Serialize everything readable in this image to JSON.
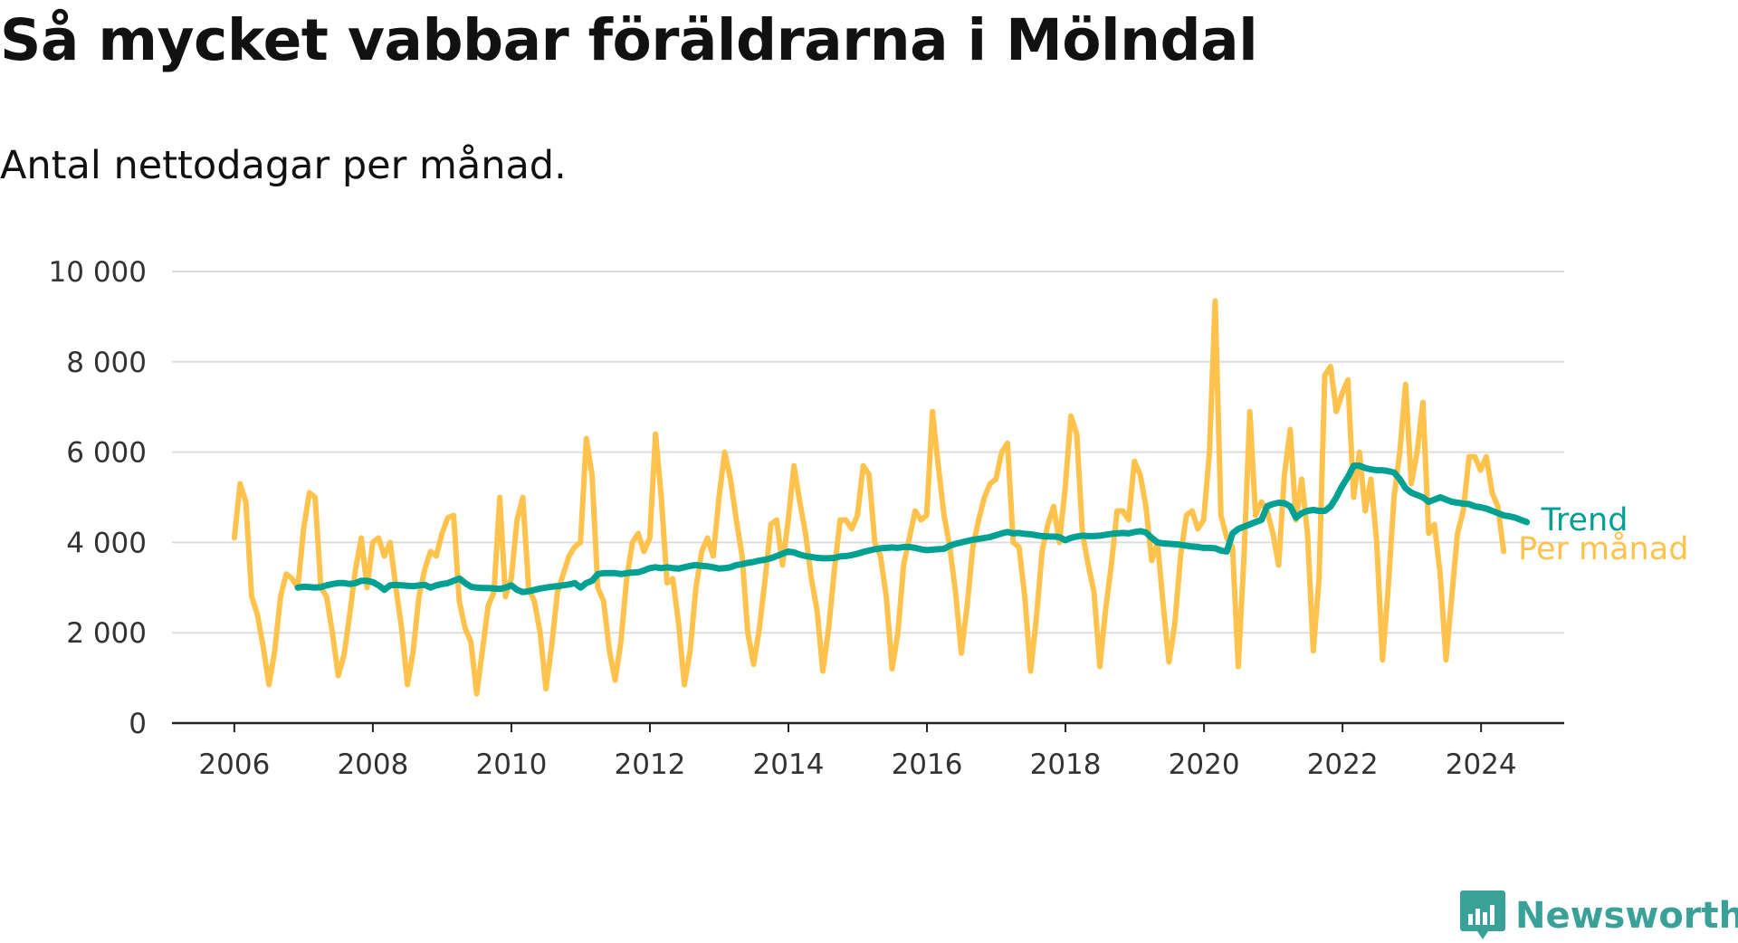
{
  "chart_data": {
    "type": "line",
    "title": "Så mycket vabbar föräldrarna i Mölndal",
    "subtitle": "Antal nettodagar per månad.",
    "xlabel": "",
    "ylabel": "",
    "x_ticks": [
      "2006",
      "2008",
      "2010",
      "2012",
      "2014",
      "2016",
      "2018",
      "2020",
      "2022",
      "2024"
    ],
    "y_ticks": [
      "0",
      "2 000",
      "4 000",
      "6 000",
      "8 000",
      "10 000"
    ],
    "ylim": [
      0,
      10000
    ],
    "xlim": [
      2005.1,
      2025.2
    ],
    "grid": "horizontal",
    "legend": "inline-right",
    "series": [
      {
        "name": "Per månad",
        "color": "#ffc24d",
        "x_start": 2006.0,
        "step": 0.0833,
        "values": [
          4100,
          5300,
          4900,
          2800,
          2400,
          1700,
          850,
          1600,
          2800,
          3300,
          3200,
          3000,
          4300,
          5100,
          5000,
          3000,
          2800,
          2000,
          1050,
          1500,
          2400,
          3400,
          4100,
          3000,
          4000,
          4100,
          3700,
          4000,
          3000,
          2100,
          850,
          1600,
          2800,
          3400,
          3800,
          3700,
          4200,
          4550,
          4600,
          2700,
          2100,
          1800,
          650,
          1600,
          2600,
          2900,
          5000,
          2800,
          3200,
          4500,
          5000,
          3000,
          2700,
          2000,
          760,
          1700,
          2900,
          3300,
          3700,
          3900,
          4000,
          6300,
          5500,
          3000,
          2700,
          1600,
          950,
          1800,
          3200,
          4000,
          4200,
          3800,
          4100,
          6400,
          5000,
          3100,
          3200,
          2200,
          850,
          1600,
          3000,
          3800,
          4100,
          3700,
          5000,
          6000,
          5400,
          4500,
          3700,
          2000,
          1300,
          2100,
          3200,
          4400,
          4500,
          3500,
          4500,
          5700,
          4900,
          4200,
          3200,
          2500,
          1150,
          2100,
          3400,
          4500,
          4500,
          4300,
          4600,
          5700,
          5500,
          4000,
          3700,
          2800,
          1200,
          2000,
          3500,
          4100,
          4700,
          4500,
          4600,
          6900,
          5700,
          4600,
          3900,
          2900,
          1550,
          2600,
          3900,
          4500,
          5000,
          5300,
          5400,
          6000,
          6200,
          4000,
          3900,
          2800,
          1150,
          2300,
          3800,
          4400,
          4800,
          4000,
          5200,
          6800,
          6400,
          4200,
          3500,
          2900,
          1250,
          2500,
          3500,
          4700,
          4700,
          4500,
          5800,
          5500,
          4800,
          3600,
          4000,
          2600,
          1350,
          2200,
          3700,
          4600,
          4700,
          4300,
          4500,
          6000,
          9350,
          4600,
          4100,
          3900,
          1250,
          3700,
          6900,
          4600,
          4900,
          4700,
          4200,
          3500,
          5500,
          6500,
          4500,
          5400,
          4200,
          1600,
          3200,
          7700,
          7900,
          6900,
          7300,
          7600,
          5000,
          6000,
          4700,
          5400,
          4000,
          1400,
          3000,
          5000,
          6000,
          7500,
          5300,
          6000,
          7100,
          4200,
          4400,
          3300,
          1400,
          2800,
          4200,
          4700,
          5900,
          5900,
          5600,
          5900,
          5100,
          4800,
          3800
        ]
      },
      {
        "name": "Trend",
        "color": "#00a092",
        "x_start": 2006.917,
        "step": 0.0833,
        "values": [
          3000,
          3020,
          3010,
          3000,
          3010,
          3050,
          3080,
          3100,
          3100,
          3080,
          3100,
          3150,
          3150,
          3120,
          3050,
          2950,
          3050,
          3060,
          3050,
          3040,
          3030,
          3050,
          3060,
          3000,
          3050,
          3080,
          3100,
          3150,
          3200,
          3100,
          3020,
          3000,
          2990,
          2990,
          2980,
          2970,
          3000,
          3050,
          2950,
          2900,
          2920,
          2950,
          2980,
          3000,
          3020,
          3030,
          3050,
          3070,
          3100,
          3000,
          3100,
          3150,
          3300,
          3320,
          3320,
          3320,
          3300,
          3320,
          3330,
          3340,
          3380,
          3430,
          3450,
          3430,
          3450,
          3430,
          3420,
          3450,
          3480,
          3500,
          3480,
          3470,
          3450,
          3420,
          3430,
          3450,
          3500,
          3520,
          3550,
          3570,
          3600,
          3620,
          3650,
          3700,
          3750,
          3800,
          3780,
          3730,
          3700,
          3680,
          3660,
          3650,
          3650,
          3660,
          3690,
          3700,
          3720,
          3750,
          3790,
          3820,
          3850,
          3870,
          3880,
          3890,
          3880,
          3900,
          3900,
          3880,
          3850,
          3830,
          3840,
          3850,
          3860,
          3930,
          3970,
          4000,
          4030,
          4060,
          4080,
          4100,
          4120,
          4160,
          4200,
          4230,
          4200,
          4210,
          4190,
          4180,
          4160,
          4140,
          4130,
          4130,
          4120,
          4050,
          4100,
          4130,
          4150,
          4140,
          4140,
          4150,
          4170,
          4190,
          4200,
          4210,
          4200,
          4230,
          4250,
          4220,
          4100,
          4000,
          3980,
          3970,
          3960,
          3950,
          3930,
          3910,
          3900,
          3880,
          3880,
          3870,
          3820,
          3800,
          4200,
          4300,
          4350,
          4400,
          4450,
          4500,
          4800,
          4850,
          4880,
          4870,
          4800,
          4550,
          4650,
          4700,
          4720,
          4700,
          4700,
          4800,
          5000,
          5250,
          5450,
          5700,
          5700,
          5650,
          5620,
          5600,
          5600,
          5580,
          5550,
          5400,
          5200,
          5100,
          5050,
          5000,
          4900,
          4950,
          5000,
          4950,
          4900,
          4880,
          4860,
          4850,
          4800,
          4780,
          4750,
          4700,
          4650,
          4600,
          4580,
          4550,
          4500,
          4450
        ]
      }
    ]
  },
  "brand": {
    "name": "Newsworthy",
    "color": "#3aa198",
    "icon": "newsworthy-logo-icon"
  }
}
